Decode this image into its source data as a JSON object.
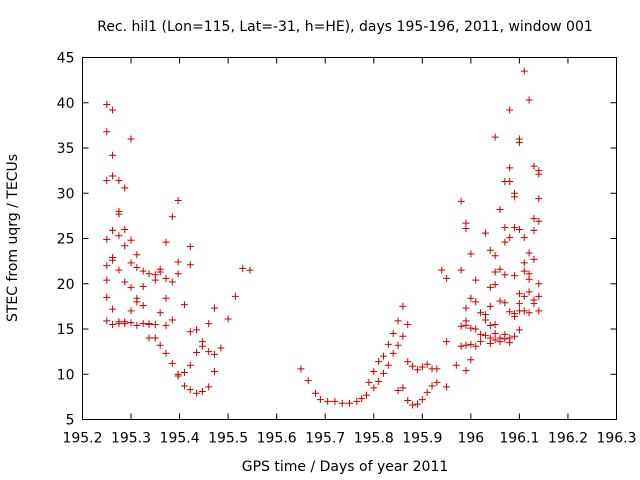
{
  "colors": {
    "series": "#cc0000",
    "axis": "#000000"
  },
  "chart_data": {
    "type": "scatter",
    "title": "Rec. hil1 (Lon=115, Lat=-31, h=HE), days 195-196, 2011, window 001",
    "xlabel": "GPS time / Days of year 2011",
    "ylabel": "STEC from uqrg / TECUs",
    "xlim": [
      195.2,
      196.3
    ],
    "ylim": [
      5,
      45
    ],
    "xticks": [
      195.2,
      195.3,
      195.4,
      195.5,
      195.6,
      195.7,
      195.8,
      195.9,
      196,
      196.1,
      196.2,
      196.3
    ],
    "xtick_labels": [
      "195.2",
      "195.3",
      "195.4",
      "195.5",
      "195.6",
      "195.7",
      "195.8",
      "195.9",
      "196",
      "196.1",
      "196.2",
      "196.3"
    ],
    "yticks": [
      5,
      10,
      15,
      20,
      25,
      30,
      35,
      40,
      45
    ],
    "ytick_labels": [
      "5",
      "10",
      "15",
      "20",
      "25",
      "30",
      "35",
      "40",
      "45"
    ],
    "grid": false,
    "legend": false,
    "marker": "+",
    "points": [
      [
        195.25,
        39.8
      ],
      [
        195.25,
        36.8
      ],
      [
        195.25,
        31.4
      ],
      [
        195.25,
        24.9
      ],
      [
        195.25,
        22.0
      ],
      [
        195.25,
        20.4
      ],
      [
        195.25,
        18.5
      ],
      [
        195.25,
        15.9
      ],
      [
        195.262,
        39.2
      ],
      [
        195.262,
        34.2
      ],
      [
        195.262,
        31.9
      ],
      [
        195.262,
        25.9
      ],
      [
        195.262,
        22.9
      ],
      [
        195.262,
        22.6
      ],
      [
        195.262,
        17.2
      ],
      [
        195.262,
        15.5
      ],
      [
        195.275,
        31.4
      ],
      [
        195.275,
        28.0
      ],
      [
        195.275,
        27.7
      ],
      [
        195.275,
        25.3
      ],
      [
        195.275,
        21.5
      ],
      [
        195.275,
        15.6
      ],
      [
        195.275,
        15.8
      ],
      [
        195.287,
        30.6
      ],
      [
        195.287,
        26.0
      ],
      [
        195.287,
        24.2
      ],
      [
        195.287,
        20.2
      ],
      [
        195.287,
        15.6
      ],
      [
        195.287,
        15.8
      ],
      [
        195.3,
        36.0
      ],
      [
        195.3,
        24.8
      ],
      [
        195.3,
        22.3
      ],
      [
        195.3,
        19.6
      ],
      [
        195.3,
        17.0
      ],
      [
        195.3,
        15.7
      ],
      [
        195.312,
        23.2
      ],
      [
        195.312,
        21.8
      ],
      [
        195.312,
        18.4
      ],
      [
        195.312,
        18.0
      ],
      [
        195.312,
        15.4
      ],
      [
        195.325,
        21.4
      ],
      [
        195.325,
        19.7
      ],
      [
        195.325,
        17.6
      ],
      [
        195.325,
        15.6
      ],
      [
        195.337,
        21.1
      ],
      [
        195.337,
        15.6
      ],
      [
        195.337,
        15.5
      ],
      [
        195.337,
        14.0
      ],
      [
        195.35,
        21.0
      ],
      [
        195.35,
        20.4
      ],
      [
        195.35,
        15.5
      ],
      [
        195.35,
        14.0
      ],
      [
        195.36,
        21.6
      ],
      [
        195.36,
        21.3
      ],
      [
        195.36,
        16.8
      ],
      [
        195.36,
        13.2
      ],
      [
        195.372,
        24.6
      ],
      [
        195.372,
        20.6
      ],
      [
        195.372,
        18.4
      ],
      [
        195.372,
        15.4
      ],
      [
        195.372,
        12.3
      ],
      [
        195.385,
        27.4
      ],
      [
        195.385,
        20.2
      ],
      [
        195.385,
        16.0
      ],
      [
        195.385,
        11.2
      ],
      [
        195.397,
        29.2
      ],
      [
        195.397,
        21.1
      ],
      [
        195.397,
        22.4
      ],
      [
        195.397,
        10.0
      ],
      [
        195.397,
        9.8
      ],
      [
        195.41,
        17.7
      ],
      [
        195.41,
        10.2
      ],
      [
        195.41,
        8.7
      ],
      [
        195.422,
        24.1
      ],
      [
        195.422,
        22.1
      ],
      [
        195.422,
        14.7
      ],
      [
        195.422,
        11.0
      ],
      [
        195.422,
        8.3
      ],
      [
        195.435,
        14.9
      ],
      [
        195.435,
        12.4
      ],
      [
        195.435,
        7.9
      ],
      [
        195.447,
        13.6
      ],
      [
        195.447,
        13.1
      ],
      [
        195.447,
        8.1
      ],
      [
        195.46,
        15.6
      ],
      [
        195.46,
        12.5
      ],
      [
        195.46,
        8.6
      ],
      [
        195.472,
        17.3
      ],
      [
        195.472,
        12.2
      ],
      [
        195.472,
        10.3
      ],
      [
        195.485,
        12.9
      ],
      [
        195.5,
        16.1
      ],
      [
        195.515,
        18.6
      ],
      [
        195.53,
        21.7
      ],
      [
        195.545,
        21.5
      ],
      [
        195.65,
        10.6
      ],
      [
        195.665,
        9.3
      ],
      [
        195.68,
        7.9
      ],
      [
        195.69,
        7.2
      ],
      [
        195.705,
        7.0
      ],
      [
        195.72,
        7.0
      ],
      [
        195.735,
        6.8
      ],
      [
        195.75,
        6.8
      ],
      [
        195.765,
        7.0
      ],
      [
        195.775,
        7.3
      ],
      [
        195.785,
        7.7
      ],
      [
        195.79,
        9.1
      ],
      [
        195.8,
        10.3
      ],
      [
        195.8,
        8.5
      ],
      [
        195.81,
        11.4
      ],
      [
        195.81,
        9.2
      ],
      [
        195.82,
        12.0
      ],
      [
        195.82,
        10.1
      ],
      [
        195.83,
        13.3
      ],
      [
        195.83,
        11.0
      ],
      [
        195.84,
        14.5
      ],
      [
        195.84,
        12.3
      ],
      [
        195.85,
        15.9
      ],
      [
        195.85,
        13.2
      ],
      [
        195.85,
        8.2
      ],
      [
        195.86,
        17.5
      ],
      [
        195.86,
        14.2
      ],
      [
        195.86,
        8.5
      ],
      [
        195.87,
        15.5
      ],
      [
        195.87,
        11.4
      ],
      [
        195.87,
        7.1
      ],
      [
        195.88,
        10.9
      ],
      [
        195.88,
        6.6
      ],
      [
        195.89,
        10.5
      ],
      [
        195.89,
        6.7
      ],
      [
        195.9,
        10.8
      ],
      [
        195.9,
        7.2
      ],
      [
        195.91,
        11.1
      ],
      [
        195.91,
        8.0
      ],
      [
        195.92,
        10.6
      ],
      [
        195.92,
        8.7
      ],
      [
        195.93,
        10.6
      ],
      [
        195.93,
        9.1
      ],
      [
        195.94,
        21.5
      ],
      [
        195.95,
        20.6
      ],
      [
        195.95,
        13.6
      ],
      [
        195.95,
        8.6
      ],
      [
        195.97,
        11.0
      ],
      [
        195.98,
        29.1
      ],
      [
        195.98,
        21.5
      ],
      [
        195.98,
        15.3
      ],
      [
        195.98,
        13.1
      ],
      [
        195.99,
        26.7
      ],
      [
        195.99,
        26.1
      ],
      [
        195.99,
        17.3
      ],
      [
        195.99,
        15.9
      ],
      [
        195.99,
        15.4
      ],
      [
        195.99,
        13.2
      ],
      [
        195.99,
        10.4
      ],
      [
        196.0,
        23.3
      ],
      [
        196.0,
        18.4
      ],
      [
        196.0,
        15.1
      ],
      [
        196.0,
        13.3
      ],
      [
        196.0,
        11.6
      ],
      [
        196.01,
        20.4
      ],
      [
        196.01,
        18.0
      ],
      [
        196.01,
        15.0
      ],
      [
        196.01,
        13.1
      ],
      [
        196.02,
        16.8
      ],
      [
        196.02,
        14.4
      ],
      [
        196.02,
        13.6
      ],
      [
        196.03,
        25.6
      ],
      [
        196.03,
        16.6
      ],
      [
        196.03,
        16.0
      ],
      [
        196.03,
        14.3
      ],
      [
        196.04,
        23.7
      ],
      [
        196.04,
        19.6
      ],
      [
        196.04,
        17.5
      ],
      [
        196.04,
        15.4
      ],
      [
        196.04,
        14.0
      ],
      [
        196.04,
        13.4
      ],
      [
        196.05,
        36.2
      ],
      [
        196.05,
        23.1
      ],
      [
        196.05,
        21.3
      ],
      [
        196.05,
        19.9
      ],
      [
        196.05,
        15.5
      ],
      [
        196.05,
        14.5
      ],
      [
        196.05,
        13.8
      ],
      [
        196.06,
        28.2
      ],
      [
        196.06,
        21.6
      ],
      [
        196.06,
        18.1
      ],
      [
        196.06,
        14.0
      ],
      [
        196.06,
        13.6
      ],
      [
        196.07,
        31.3
      ],
      [
        196.07,
        26.2
      ],
      [
        196.07,
        24.6
      ],
      [
        196.07,
        21.0
      ],
      [
        196.07,
        17.9
      ],
      [
        196.07,
        14.4
      ],
      [
        196.07,
        13.9
      ],
      [
        196.08,
        39.2
      ],
      [
        196.08,
        32.8
      ],
      [
        196.08,
        31.3
      ],
      [
        196.08,
        25.1
      ],
      [
        196.08,
        16.9
      ],
      [
        196.08,
        14.0
      ],
      [
        196.08,
        13.5
      ],
      [
        196.09,
        30.0
      ],
      [
        196.09,
        29.6
      ],
      [
        196.09,
        26.2
      ],
      [
        196.09,
        20.9
      ],
      [
        196.09,
        16.4
      ],
      [
        196.09,
        16.7
      ],
      [
        196.09,
        14.2
      ],
      [
        196.1,
        36.0
      ],
      [
        196.1,
        35.6
      ],
      [
        196.1,
        26.0
      ],
      [
        196.1,
        18.9
      ],
      [
        196.1,
        17.8
      ],
      [
        196.1,
        17.0
      ],
      [
        196.1,
        14.9
      ],
      [
        196.11,
        43.5
      ],
      [
        196.11,
        25.1
      ],
      [
        196.11,
        22.3
      ],
      [
        196.11,
        21.4
      ],
      [
        196.11,
        18.6
      ],
      [
        196.11,
        17.0
      ],
      [
        196.12,
        40.3
      ],
      [
        196.12,
        23.4
      ],
      [
        196.12,
        21.1
      ],
      [
        196.12,
        20.5
      ],
      [
        196.12,
        19.1
      ],
      [
        196.12,
        16.8
      ],
      [
        196.13,
        33.0
      ],
      [
        196.13,
        27.2
      ],
      [
        196.13,
        25.9
      ],
      [
        196.13,
        22.7
      ],
      [
        196.13,
        18.2
      ],
      [
        196.13,
        17.8
      ],
      [
        196.14,
        32.5
      ],
      [
        196.14,
        32.1
      ],
      [
        196.14,
        29.4
      ],
      [
        196.14,
        26.9
      ],
      [
        196.14,
        20.0
      ],
      [
        196.14,
        18.6
      ],
      [
        196.14,
        17.0
      ]
    ]
  }
}
